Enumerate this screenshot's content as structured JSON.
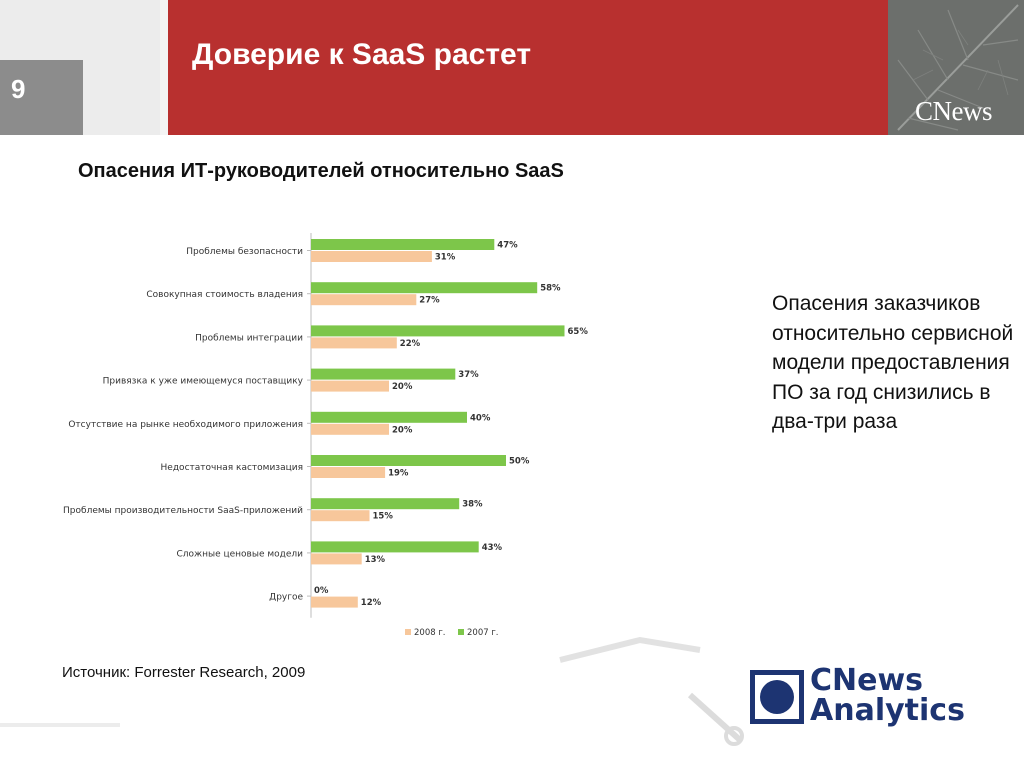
{
  "slide": {
    "number": "9",
    "title": "Доверие к SaaS растет",
    "header_logo": "CNews"
  },
  "chart_title": "Опасения ИТ-руководителей относительно SaaS",
  "side_text": "Опасения заказчиков относительно сервисной модели предоставления ПО за год снизились в два-три раза",
  "source": "Источник: Forrester Research, 2009",
  "footer_logo": {
    "line1": "CNews",
    "line2": "Analytics"
  },
  "colors": {
    "header_red": "#b8302f",
    "series_2007": "#7dc64a",
    "series_2008": "#f7c79b",
    "logo_blue": "#1d3472"
  },
  "chart_data": {
    "type": "bar",
    "orientation": "horizontal",
    "categories": [
      "Проблемы безопасности",
      "Совокупная стоимость владения",
      "Проблемы интеграции",
      "Привязка к уже имеющемуся поставщику",
      "Отсутствие на рынке необходимого приложения",
      "Недостаточная кастомизация",
      "Проблемы производительности SaaS-приложений",
      "Сложные ценовые модели",
      "Другое"
    ],
    "series": [
      {
        "name": "2007 г.",
        "color": "#7dc64a",
        "values": [
          47,
          58,
          65,
          37,
          40,
          50,
          38,
          43,
          0
        ]
      },
      {
        "name": "2008 г.",
        "color": "#f7c79b",
        "values": [
          31,
          27,
          22,
          20,
          20,
          19,
          15,
          13,
          12
        ]
      }
    ],
    "value_suffix": "%",
    "xlim": [
      0,
      100
    ],
    "legend": [
      "2008 г.",
      "2007 г."
    ],
    "legend_position": "bottom",
    "grid": false
  }
}
